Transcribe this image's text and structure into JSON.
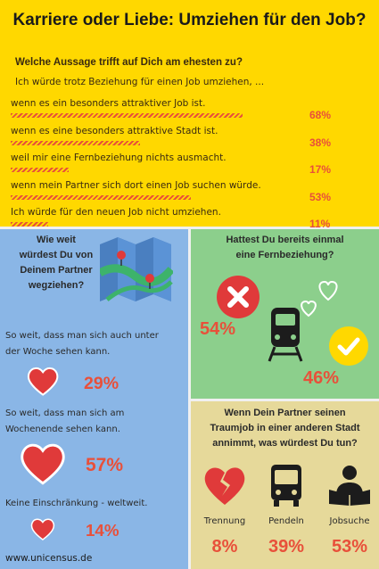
{
  "title": "Karriere oder Liebe: Umziehen für den Job?",
  "top_section": {
    "question": "Welche Aussage trifft auf Dich am ehesten zu?",
    "subquestion": "Ich würde trotz Beziehung für einen Job umziehen, ..."
  },
  "chart_data": [
    {
      "type": "bar",
      "title": "Welche Aussage trifft auf Dich am ehesten zu?",
      "categories": [
        "wenn es ein besonders attraktiver Job ist.",
        "wenn es eine besonders attraktive Stadt ist.",
        "weil mir eine Fernbeziehung nichts ausmacht.",
        "wenn mein Partner sich dort einen Job suchen würde.",
        "Ich würde für den neuen Job nicht umziehen."
      ],
      "values": [
        68,
        38,
        17,
        53,
        11
      ],
      "value_labels": [
        "68%",
        "38%",
        "17%",
        "53%",
        "11%"
      ],
      "ylim": [
        0,
        100
      ],
      "unit": "%"
    },
    {
      "type": "bar",
      "title": "Wie weit würdest Du von Deinem Partner wegziehen?",
      "categories": [
        "So weit, dass man sich auch unter der Woche sehen kann.",
        "So weit, dass man sich am Wochenende sehen kann.",
        "Keine Einschränkung - weltweit."
      ],
      "values": [
        29,
        57,
        14
      ],
      "value_labels": [
        "29%",
        "57%",
        "14%"
      ],
      "unit": "%"
    },
    {
      "type": "bar",
      "title": "Hattest Du bereits einmal eine Fernbeziehung?",
      "categories": [
        "Nein",
        "Ja"
      ],
      "values": [
        54,
        46
      ],
      "value_labels": [
        "54%",
        "46%"
      ],
      "unit": "%"
    },
    {
      "type": "bar",
      "title": "Wenn Dein Partner seinen Traumjob in einer anderen Stadt annimmt, was würdest Du tun?",
      "categories": [
        "Trennung",
        "Pendeln",
        "Jobsuche"
      ],
      "values": [
        8,
        39,
        53
      ],
      "value_labels": [
        "8%",
        "39%",
        "53%"
      ],
      "unit": "%"
    }
  ],
  "left_panel": {
    "heading_l1": "Wie weit",
    "heading_l2": "würdest Du von",
    "heading_l3": "Deinem Partner",
    "heading_l4": "wegziehen?",
    "opt1_l1": "So weit, dass man sich auch unter",
    "opt1_l2": "der Woche sehen kann.",
    "opt2_l1": "So weit, dass man sich am",
    "opt2_l2": "Wochenende sehen kann.",
    "opt3": "Keine Einschränkung - weltweit."
  },
  "right_top": {
    "heading_l1": "Hattest Du bereits einmal",
    "heading_l2": "eine Fernbeziehung?"
  },
  "right_bottom": {
    "heading_l1": "Wenn Dein Partner seinen",
    "heading_l2": "Traumjob in einer anderen Stadt",
    "heading_l3": "annimmt, was würdest Du tun?"
  },
  "footer_url": "www.unicensus.de",
  "colors": {
    "yellow": "#ffd800",
    "accent_red": "#e8503a",
    "blue_panel": "#8ab6e6",
    "green_panel": "#8ccf8c",
    "beige_panel": "#e6d99a",
    "heart_red": "#e03a3a"
  },
  "icons": [
    "map-icon",
    "heart-icon",
    "cross-icon",
    "train-icon",
    "check-icon",
    "broken-heart-icon",
    "bus-icon",
    "job-search-icon"
  ]
}
